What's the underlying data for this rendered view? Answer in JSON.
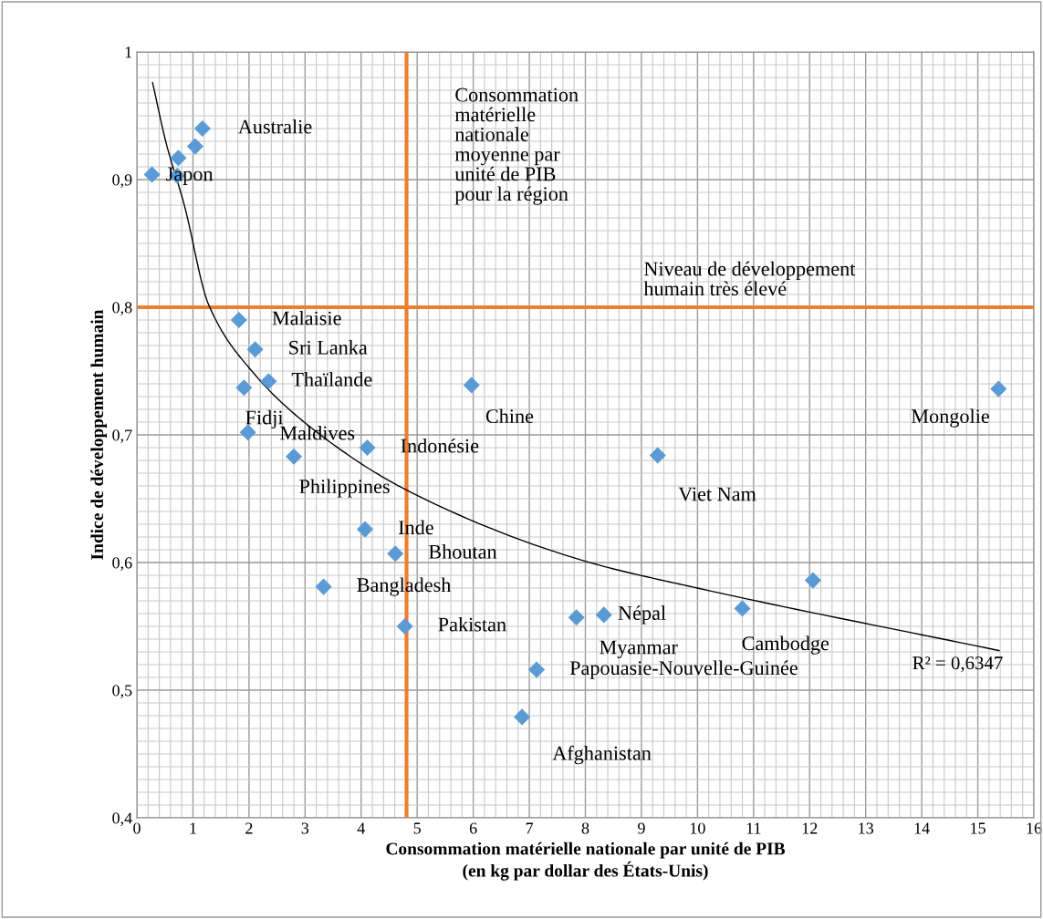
{
  "chart_data": {
    "type": "scatter",
    "xlabel": "Consommation matérielle nationale par unité de PIB\n(en kg par dollar des États-Unis)",
    "ylabel": "Indice de développement humain",
    "xlim": [
      0,
      16
    ],
    "xticks": [
      0,
      1,
      2,
      3,
      4,
      5,
      6,
      7,
      8,
      9,
      10,
      11,
      12,
      13,
      14,
      15,
      16
    ],
    "ylim": [
      0.4,
      1
    ],
    "yticks": [
      {
        "value": 0.4,
        "label": "0,4"
      },
      {
        "value": 0.5,
        "label": "0,5"
      },
      {
        "value": 0.6,
        "label": "0,6"
      },
      {
        "value": 0.7,
        "label": "0,7"
      },
      {
        "value": 0.8,
        "label": "0,8"
      },
      {
        "value": 0.9,
        "label": "0,9"
      },
      {
        "value": 1,
        "label": "1"
      }
    ],
    "grid": true,
    "marker": "diamond",
    "series": [
      {
        "color": "#5b9bd5",
        "x": [
          0.27,
          0.72,
          0.74,
          1.04,
          1.17,
          1.82,
          2.11,
          2.35,
          1.91,
          1.98,
          2.8,
          4.11,
          5.97,
          15.37,
          9.29,
          4.07,
          4.61,
          3.33,
          4.78,
          8.33,
          7.84,
          10.8,
          12.06,
          7.13,
          6.87
        ],
        "values": [
          0.904,
          0.903,
          0.917,
          0.926,
          0.94,
          0.79,
          0.767,
          0.742,
          0.737,
          0.702,
          0.683,
          0.69,
          0.739,
          0.736,
          0.684,
          0.626,
          0.607,
          0.581,
          0.55,
          0.559,
          0.557,
          0.564,
          0.586,
          0.516,
          0.479
        ]
      },
      {
        "type": "line",
        "color": "#000000",
        "marker": "none",
        "x": [
          0.28,
          0.52,
          0.84,
          1.28,
          2.09,
          3.07,
          4.8,
          8.0,
          10.0,
          15.38
        ],
        "values": [
          0.976,
          0.929,
          0.881,
          0.802,
          0.748,
          0.707,
          0.657,
          0.601,
          0.58,
          0.531
        ]
      }
    ],
    "ref_lines": [
      {
        "axis": "x",
        "value": 4.81,
        "label": "Consommation\nmatérielle\nnationale\nmoyenne par\nunité de PIB\npour la région",
        "color": "#ed7d31"
      },
      {
        "axis": "y",
        "value": 0.8,
        "label": "Niveau de développement\nhumain très élevé",
        "color": "#ed7d31"
      }
    ],
    "annotations": [
      {
        "text": "Australie",
        "x": 1.17,
        "y": 0.94
      },
      {
        "text": "Japon",
        "x": 0.72,
        "y": 0.903
      },
      {
        "text": "Malaisie",
        "x": 1.82,
        "y": 0.79
      },
      {
        "text": "Sri Lanka",
        "x": 2.11,
        "y": 0.767
      },
      {
        "text": "Thaïlande",
        "x": 2.35,
        "y": 0.742
      },
      {
        "text": "Fidji",
        "x": 1.91,
        "y": 0.737
      },
      {
        "text": "Maldives",
        "x": 1.98,
        "y": 0.702
      },
      {
        "text": "Philippines",
        "x": 2.8,
        "y": 0.683
      },
      {
        "text": "Indonésie",
        "x": 4.11,
        "y": 0.69
      },
      {
        "text": "Chine",
        "x": 5.97,
        "y": 0.739
      },
      {
        "text": "Mongolie",
        "x": 15.37,
        "y": 0.736
      },
      {
        "text": "Viet Nam",
        "x": 9.29,
        "y": 0.684
      },
      {
        "text": "Inde",
        "x": 4.07,
        "y": 0.626
      },
      {
        "text": "Bhoutan",
        "x": 4.61,
        "y": 0.607
      },
      {
        "text": "Bangladesh",
        "x": 3.33,
        "y": 0.581
      },
      {
        "text": "Pakistan",
        "x": 4.78,
        "y": 0.55
      },
      {
        "text": "Népal",
        "x": 8.33,
        "y": 0.559
      },
      {
        "text": "Myanmar",
        "x": 7.84,
        "y": 0.557
      },
      {
        "text": "Cambodge",
        "x": 10.8,
        "y": 0.564
      },
      {
        "text": "Papouasie-Nouvelle-Guinée",
        "x": 7.13,
        "y": 0.516
      },
      {
        "text": "Afghanistan",
        "x": 6.87,
        "y": 0.479
      },
      "R² = 0,6347"
    ]
  }
}
